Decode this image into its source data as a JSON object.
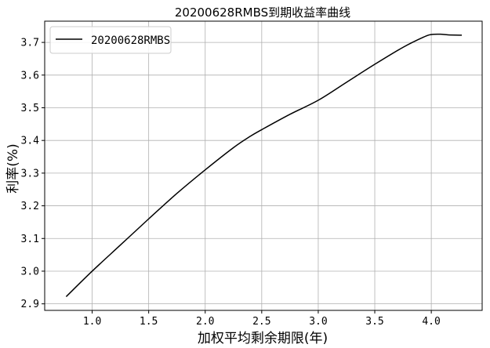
{
  "chart_data": {
    "type": "line",
    "title": "20200628RMBS到期收益率曲线",
    "xlabel": "加权平均剩余期限(年)",
    "ylabel": "利率(%)",
    "xlim": [
      0.58,
      4.45
    ],
    "ylim": [
      2.88,
      3.765
    ],
    "xticks": [
      1.0,
      1.5,
      2.0,
      2.5,
      3.0,
      3.5,
      4.0
    ],
    "xtick_labels": [
      "1.0",
      "1.5",
      "2.0",
      "2.5",
      "3.0",
      "3.5",
      "4.0"
    ],
    "yticks": [
      2.9,
      3.0,
      3.1,
      3.2,
      3.3,
      3.4,
      3.5,
      3.6,
      3.7
    ],
    "ytick_labels": [
      "2.9",
      "3.0",
      "3.1",
      "3.2",
      "3.3",
      "3.4",
      "3.5",
      "3.6",
      "3.7"
    ],
    "grid": true,
    "legend_position": "top-left",
    "series": [
      {
        "name": "20200628RMBS",
        "color": "#000000",
        "x": [
          0.77,
          1.0,
          1.25,
          1.5,
          1.75,
          2.0,
          2.25,
          2.4,
          2.5,
          2.75,
          3.0,
          3.25,
          3.5,
          3.75,
          3.93,
          4.0,
          4.08,
          4.15,
          4.27
        ],
        "y": [
          2.922,
          3.0,
          3.08,
          3.16,
          3.238,
          3.31,
          3.378,
          3.413,
          3.433,
          3.48,
          3.523,
          3.578,
          3.633,
          3.685,
          3.716,
          3.724,
          3.725,
          3.723,
          3.722
        ]
      }
    ]
  }
}
